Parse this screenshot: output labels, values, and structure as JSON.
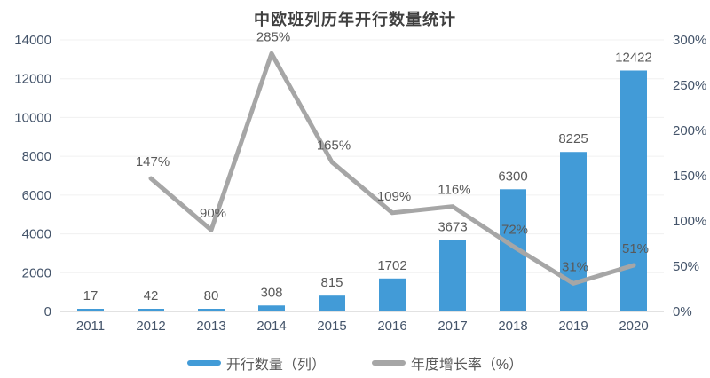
{
  "title": "中欧班列历年开行数量统计",
  "legend": {
    "items": [
      {
        "label": "开行数量（列）",
        "color": "#429bd7",
        "marker": "bar-swatch"
      },
      {
        "label": "年度增长率（%）",
        "color": "#a6a6a6",
        "marker": "line-swatch"
      }
    ]
  },
  "colors": {
    "bar": "#429bd7",
    "line": "#a6a6a6",
    "axis_text": "#44546a",
    "data_label": "#595959",
    "gridline": "#f0f0f0",
    "axis_line": "#d9d9d9",
    "title_text": "#3f3f3f",
    "background": "#ffffff"
  },
  "chart_data": {
    "type": "bar",
    "subtype": "bar+line combo, dual axis",
    "title": "中欧班列历年开行数量统计",
    "categories": [
      "2011",
      "2012",
      "2013",
      "2014",
      "2015",
      "2016",
      "2017",
      "2018",
      "2019",
      "2020"
    ],
    "series": [
      {
        "name": "开行数量（列）",
        "type": "bar",
        "axis": "left",
        "values": [
          17,
          42,
          80,
          308,
          815,
          1702,
          3673,
          6300,
          8225,
          12422
        ],
        "labels": [
          "17",
          "42",
          "80",
          "308",
          "815",
          "1702",
          "3673",
          "6300",
          "8225",
          "12422"
        ]
      },
      {
        "name": "年度增长率（%）",
        "type": "line",
        "axis": "right",
        "values": [
          null,
          147,
          90,
          285,
          165,
          109,
          116,
          72,
          31,
          51
        ],
        "labels": [
          "",
          "147%",
          "90%",
          "285%",
          "165%",
          "109%",
          "116%",
          "72%",
          "31%",
          "51%"
        ]
      }
    ],
    "left_axis": {
      "min": 0,
      "max": 14000,
      "step": 2000,
      "tick_labels": [
        "0",
        "2000",
        "4000",
        "6000",
        "8000",
        "10000",
        "12000",
        "14000"
      ]
    },
    "right_axis": {
      "min": 0,
      "max": 300,
      "step": 50,
      "suffix": "%",
      "tick_labels": [
        "0%",
        "50%",
        "100%",
        "150%",
        "200%",
        "250%",
        "300%"
      ]
    },
    "xlabel": "",
    "ylabel": "",
    "grid": true,
    "legend_position": "bottom"
  }
}
